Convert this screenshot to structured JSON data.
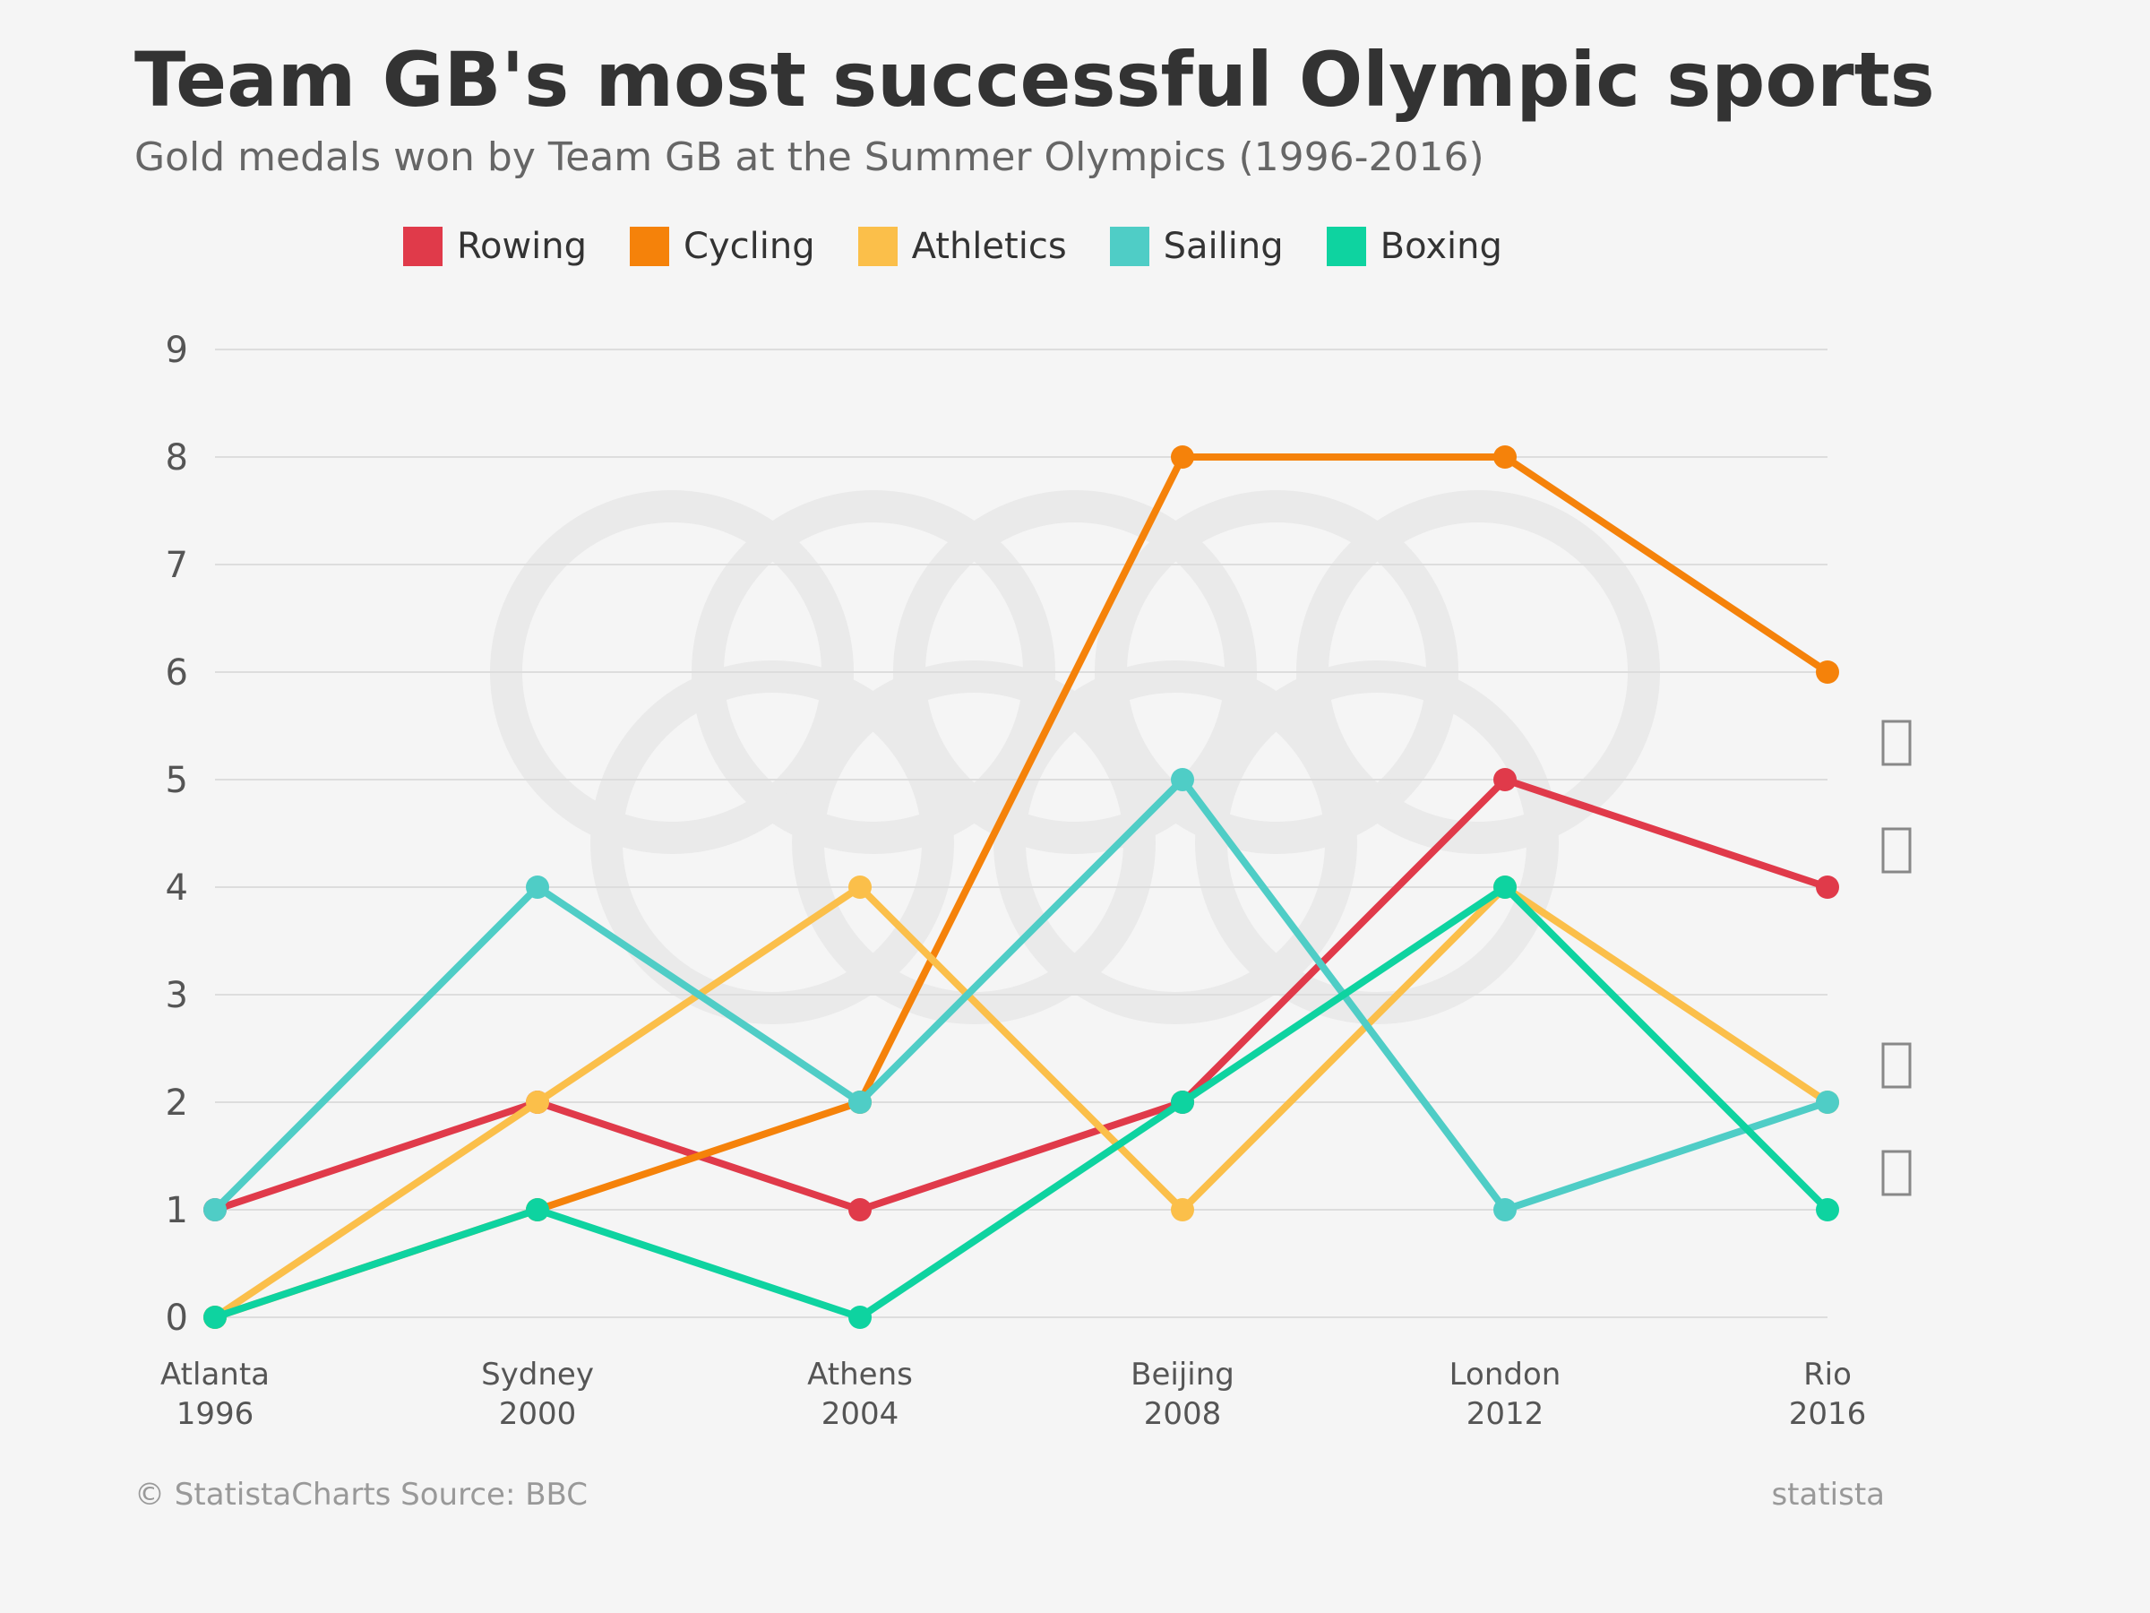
{
  "header": {
    "title": "Team GB's most successful Olympic sports",
    "subtitle": "Gold medals won by Team GB at the Summer Olympics (1996-2016)"
  },
  "footer": {
    "source": "© StatistaCharts Source: BBC",
    "brand": "statista"
  },
  "colors": {
    "Rowing": "#e03a4a",
    "Cycling": "#f5820a",
    "Athletics": "#fbbf4a",
    "Sailing": "#4fcdc6",
    "Boxing": "#0ed3a0",
    "grid": "#dddddd",
    "rings": "#eaeaea"
  },
  "chart_data": {
    "type": "line",
    "x": [
      "Atlanta 1996",
      "Sydney 2000",
      "Athens 2004",
      "Beijing 2008",
      "London 2012",
      "Rio 2016"
    ],
    "x_tick_lines": [
      [
        "Atlanta",
        "1996"
      ],
      [
        "Sydney",
        "2000"
      ],
      [
        "Athens",
        "2004"
      ],
      [
        "Beijing",
        "2008"
      ],
      [
        "London",
        "2012"
      ],
      [
        "Rio",
        "2016"
      ]
    ],
    "y_ticks": [
      0,
      1,
      2,
      3,
      4,
      5,
      6,
      7,
      8,
      9
    ],
    "ylim": [
      0,
      9
    ],
    "grid": true,
    "legend_position": "top",
    "series": [
      {
        "name": "Rowing",
        "values": [
          1,
          2,
          1,
          2,
          5,
          4
        ]
      },
      {
        "name": "Cycling",
        "values": [
          0,
          1,
          2,
          8,
          8,
          6
        ]
      },
      {
        "name": "Athletics",
        "values": [
          0,
          2,
          4,
          1,
          4,
          2
        ]
      },
      {
        "name": "Sailing",
        "values": [
          1,
          4,
          2,
          5,
          1,
          2
        ]
      },
      {
        "name": "Boxing",
        "values": [
          0,
          1,
          0,
          2,
          4,
          1
        ]
      }
    ],
    "right_side_icons": [
      {
        "name": "rowing-icon",
        "y": 5
      },
      {
        "name": "rowing-icon",
        "y": 4
      },
      {
        "name": "sailing-icon",
        "y": 2
      },
      {
        "name": "boxing-icon",
        "y": 1
      }
    ],
    "background_watermark": "olympic-rings-icon"
  }
}
